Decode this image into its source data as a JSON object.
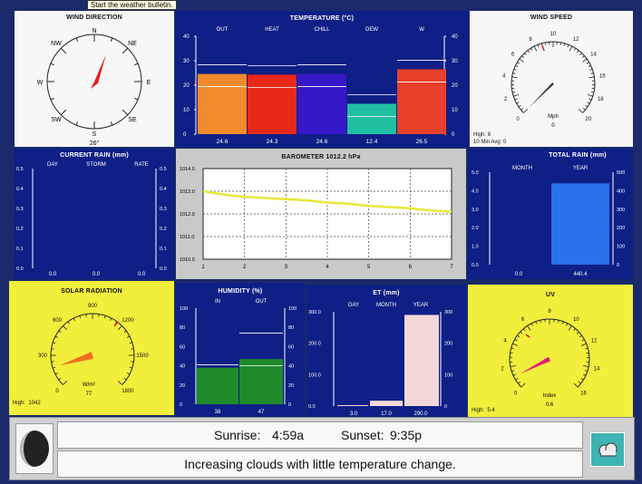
{
  "tooltip": "Start the weather bulletin.",
  "wind_direction": {
    "title": "WIND DIRECTION",
    "labels": [
      "N",
      "NE",
      "E",
      "SE",
      "S",
      "SW",
      "W",
      "NW"
    ],
    "value": "26°"
  },
  "temperature": {
    "title": "TEMPERATURE  (°C)",
    "chart_data": {
      "type": "bar",
      "categories": [
        "OUT",
        "HEAT",
        "CHILL",
        "DEW",
        "W"
      ],
      "values": [
        24.6,
        24.3,
        24.6,
        12.4,
        26.5
      ],
      "ylim": [
        0,
        40
      ],
      "ticks": [
        "0",
        "10",
        "20",
        "30",
        "40"
      ],
      "value_labels": [
        "24.6",
        "24.3",
        "24.6",
        "12.4",
        "26.5"
      ]
    },
    "bar_colors": [
      "#f08a2c",
      "#e82818",
      "#3618c8",
      "#1fc0a0",
      "#e8402a"
    ]
  },
  "wind_speed": {
    "title": "WIND SPEED",
    "ticks": [
      "0",
      "2",
      "4",
      "6",
      "8",
      "10",
      "12",
      "14",
      "16",
      "18",
      "20"
    ],
    "unit": "Mph",
    "value": "0",
    "high_label": "High:",
    "high_value": "8",
    "avg_label": "10 Min Avg:",
    "avg_value": "0"
  },
  "current_rain": {
    "title": "CURRENT RAIN  (mm)",
    "cols": [
      "DAY",
      "STORM",
      "RATE"
    ],
    "values": [
      "0.0",
      "0.0",
      "0.0"
    ],
    "ticks": [
      "0.0",
      "0.1",
      "0.2",
      "0.3",
      "0.4",
      "0.5"
    ]
  },
  "barometer": {
    "title": "BAROMETER 1012.2 hPa",
    "chart_data": {
      "type": "line",
      "x": [
        1,
        1.5,
        2,
        2.5,
        3,
        3.5,
        4,
        4.5,
        5,
        5.5,
        6,
        6.5,
        7
      ],
      "y": [
        1013.0,
        1012.85,
        1012.75,
        1012.7,
        1012.65,
        1012.6,
        1012.5,
        1012.45,
        1012.35,
        1012.3,
        1012.25,
        1012.15,
        1012.1
      ],
      "xlim": [
        1,
        7
      ],
      "ylim": [
        1010,
        1014
      ],
      "xticks": [
        "1",
        "2",
        "3",
        "4",
        "5",
        "6",
        "7"
      ],
      "yticks": [
        "1010.0",
        "1011.0",
        "1012.0",
        "1013.0",
        "1014.0"
      ]
    }
  },
  "total_rain": {
    "title": "TOTAL RAIN  (mm)",
    "cols": [
      "MONTH",
      "YEAR"
    ],
    "values": [
      "0.0",
      "440.4"
    ],
    "year_fraction": 0.88,
    "left_ticks": [
      "0.0",
      "1.0",
      "2.0",
      "3.0",
      "4.0",
      "5.0"
    ],
    "right_ticks": [
      "0",
      "100",
      "200",
      "300",
      "400",
      "500"
    ]
  },
  "solar": {
    "title": "SOLAR RADIATION",
    "ticks": [
      "0",
      "300",
      "600",
      "900",
      "1200",
      "1500",
      "1800"
    ],
    "unit": "W/m²",
    "value": "77",
    "high_label": "High:",
    "high_value": "1042"
  },
  "humidity": {
    "title": "HUMIDITY  (%)",
    "cols": [
      "IN",
      "OUT"
    ],
    "values": [
      "38",
      "47"
    ],
    "ticks": [
      "0",
      "20",
      "40",
      "60",
      "80",
      "100"
    ]
  },
  "et": {
    "title": "ET  (mm)",
    "cols": [
      "DAY",
      "MONTH",
      "YEAR"
    ],
    "values": [
      "3.0",
      "17.0",
      "290.0"
    ],
    "left_ticks": [
      "0.0",
      "100.0",
      "200.0",
      "300.0"
    ],
    "right_ticks": [
      "0",
      "100",
      "200",
      "300"
    ]
  },
  "uv": {
    "title": "UV",
    "ticks": [
      "0",
      "2",
      "4",
      "6",
      "8",
      "10",
      "12",
      "14",
      "16"
    ],
    "label": "Index",
    "value": "0.6",
    "high_label": "High:",
    "high_value": "5.4"
  },
  "bottom": {
    "sunrise_label": "Sunrise:",
    "sunrise": "4:59a",
    "sunset_label": "Sunset:",
    "sunset": "9:35p",
    "forecast": "Increasing clouds with little temperature change."
  }
}
